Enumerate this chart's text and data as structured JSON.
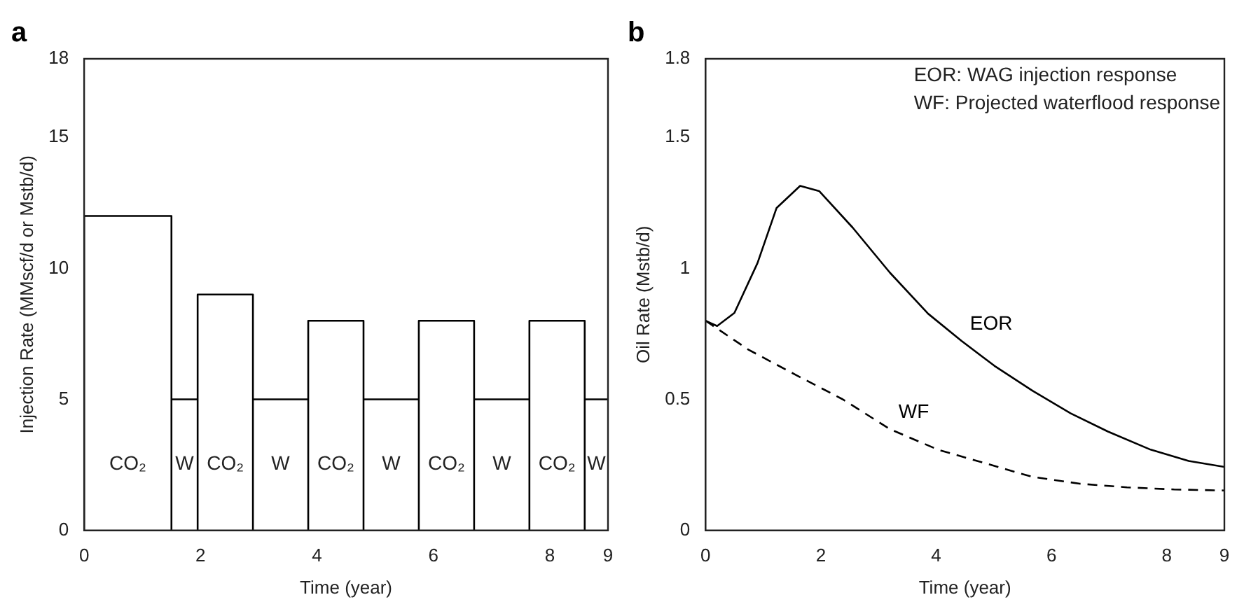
{
  "chart_data": [
    {
      "type": "line",
      "title": "a",
      "xlabel": "Time (year)",
      "ylabel": "Injection Rate (MMscf/d or Mstb/d)",
      "x": [
        0,
        0,
        1.5,
        1.5,
        1.5,
        1.95,
        1.95,
        1.95,
        2.9,
        2.9,
        2.9,
        3.85,
        3.85,
        3.85,
        4.8,
        4.8,
        4.8,
        5.75,
        5.75,
        5.75,
        6.7,
        6.7,
        6.7,
        7.65,
        7.65,
        7.65,
        8.6,
        8.6,
        8.6,
        9
      ],
      "series": [
        {
          "color": "#000000",
          "values": [
            0,
            12,
            12,
            0,
            5,
            5,
            0,
            9,
            9,
            0,
            5,
            5,
            0,
            8,
            8,
            0,
            5,
            5,
            0,
            8,
            8,
            0,
            5,
            5,
            0,
            8,
            8,
            0,
            5,
            5
          ]
        }
      ],
      "xlim": [
        0,
        9
      ],
      "xticks": [
        0,
        2,
        4,
        6,
        8,
        9
      ],
      "ylim": [
        0,
        18
      ],
      "yticks": [
        0,
        5,
        10,
        15,
        18
      ],
      "grid": false,
      "annotations": [
        "CO₂",
        "W",
        "CO₂",
        "W",
        "CO₂",
        "W",
        "CO₂",
        "W",
        "CO₂",
        "W"
      ]
    },
    {
      "type": "line",
      "title": "b",
      "xlabel": "Time (year)",
      "ylabel": "Oil Rate (Mstb/d)",
      "series": [
        {
          "name": "EOR",
          "color": "#000000",
          "line_style": "solid",
          "x": [
            0,
            0.2,
            0.5,
            0.9,
            1.23,
            1.64,
            1.97,
            2.55,
            3.2,
            3.86,
            4.44,
            5.01,
            5.67,
            6.33,
            6.98,
            7.72,
            8.38,
            9
          ],
          "values": [
            0.8,
            0.78,
            0.83,
            1.02,
            1.23,
            1.315,
            1.295,
            1.156,
            0.983,
            0.827,
            0.723,
            0.628,
            0.533,
            0.447,
            0.377,
            0.308,
            0.265,
            0.242
          ]
        },
        {
          "name": "WF",
          "color": "#000000",
          "line_style": "dashed",
          "x": [
            0,
            0.74,
            1.56,
            2.38,
            3.2,
            4.03,
            4.85,
            5.67,
            6.49,
            7.31,
            8.13,
            9
          ],
          "values": [
            0.8,
            0.69,
            0.594,
            0.5,
            0.386,
            0.308,
            0.256,
            0.204,
            0.178,
            0.164,
            0.156,
            0.152
          ]
        }
      ],
      "xlim": [
        0,
        9
      ],
      "xticks": [
        0,
        2,
        4,
        6,
        8,
        9
      ],
      "ylim": [
        0,
        1.8
      ],
      "yticks": [
        0,
        0.5,
        1,
        1.5,
        1.8
      ],
      "grid": false,
      "annotations": [
        "EOR: WAG injection response",
        "WF: Projected waterflood response"
      ]
    }
  ]
}
